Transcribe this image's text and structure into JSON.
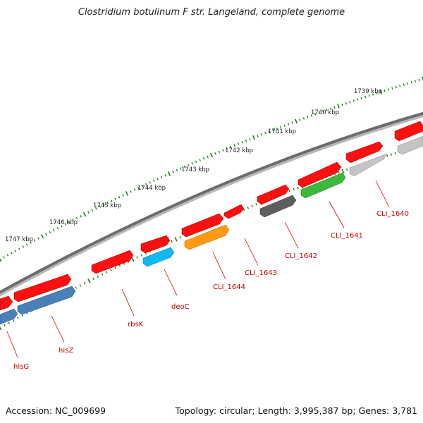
{
  "title": "Clostridium botulinum F str. Langeland, complete genome",
  "footer": {
    "accession": "Accession: NC_009699",
    "summary": "Topology: circular; Length: 3,995,387 bp; Genes: 3,781"
  },
  "scale": {
    "unit": "kbp",
    "labels": [
      "1739 kbp",
      "1740 kbp",
      "1741 kbp",
      "1742 kbp",
      "1743 kbp",
      "1744 kbp",
      "1745 kbp",
      "1746 kbp",
      "1747 kbp"
    ]
  },
  "colors": {
    "backbone": "#7a7a7a",
    "tick": "#1a7a1a",
    "gene_forward": "#ff1010",
    "label": "#cc0000"
  },
  "genes": [
    {
      "name": "CLI_1640",
      "color": "#c4c4c4"
    },
    {
      "name": "CLI_1641",
      "color": "#3cb83c"
    },
    {
      "name": "CLI_1642",
      "color": "#5e5e5e"
    },
    {
      "name": "CLI_1643",
      "color": "#ff1010"
    },
    {
      "name": "CLI_1644",
      "color": "#ff9a12"
    },
    {
      "name": "deoC",
      "color": "#12b8f0"
    },
    {
      "name": "rbsK",
      "color": "#ff1010"
    },
    {
      "name": "hisZ",
      "color": "#4a7fb8"
    },
    {
      "name": "hisG",
      "color": "#4a7fb8"
    }
  ]
}
